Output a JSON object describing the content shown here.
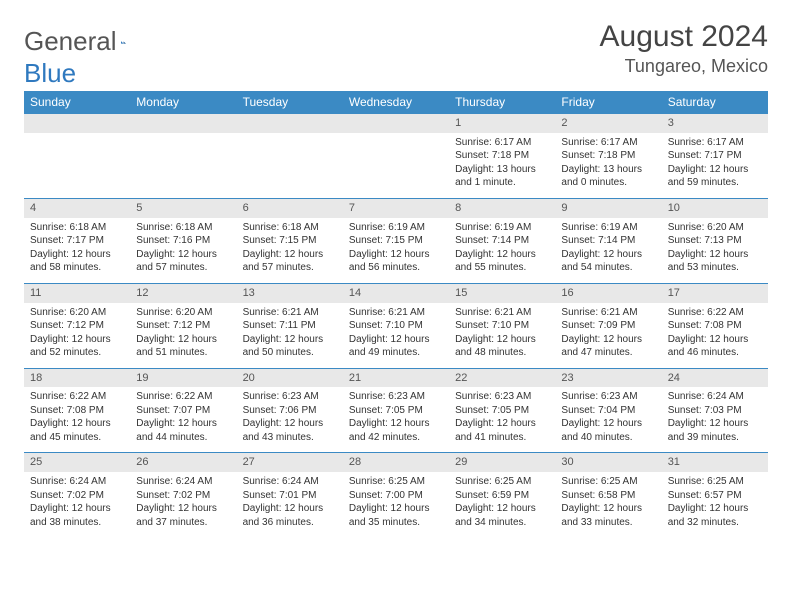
{
  "logo": {
    "part1": "General",
    "part2": "Blue"
  },
  "title": "August 2024",
  "location": "Tungareo, Mexico",
  "colors": {
    "header_bg": "#3b8ac4",
    "header_fg": "#ffffff",
    "daynum_bg": "#e8e8e8",
    "rule": "#3b8ac4",
    "text": "#333333",
    "logo_gray": "#555555",
    "logo_blue": "#2f79bf",
    "bg": "#ffffff"
  },
  "day_names": [
    "Sunday",
    "Monday",
    "Tuesday",
    "Wednesday",
    "Thursday",
    "Friday",
    "Saturday"
  ],
  "weeks": [
    [
      null,
      null,
      null,
      null,
      {
        "n": "1",
        "sunrise": "6:17 AM",
        "sunset": "7:18 PM",
        "daylight": "13 hours and 1 minute."
      },
      {
        "n": "2",
        "sunrise": "6:17 AM",
        "sunset": "7:18 PM",
        "daylight": "13 hours and 0 minutes."
      },
      {
        "n": "3",
        "sunrise": "6:17 AM",
        "sunset": "7:17 PM",
        "daylight": "12 hours and 59 minutes."
      }
    ],
    [
      {
        "n": "4",
        "sunrise": "6:18 AM",
        "sunset": "7:17 PM",
        "daylight": "12 hours and 58 minutes."
      },
      {
        "n": "5",
        "sunrise": "6:18 AM",
        "sunset": "7:16 PM",
        "daylight": "12 hours and 57 minutes."
      },
      {
        "n": "6",
        "sunrise": "6:18 AM",
        "sunset": "7:15 PM",
        "daylight": "12 hours and 57 minutes."
      },
      {
        "n": "7",
        "sunrise": "6:19 AM",
        "sunset": "7:15 PM",
        "daylight": "12 hours and 56 minutes."
      },
      {
        "n": "8",
        "sunrise": "6:19 AM",
        "sunset": "7:14 PM",
        "daylight": "12 hours and 55 minutes."
      },
      {
        "n": "9",
        "sunrise": "6:19 AM",
        "sunset": "7:14 PM",
        "daylight": "12 hours and 54 minutes."
      },
      {
        "n": "10",
        "sunrise": "6:20 AM",
        "sunset": "7:13 PM",
        "daylight": "12 hours and 53 minutes."
      }
    ],
    [
      {
        "n": "11",
        "sunrise": "6:20 AM",
        "sunset": "7:12 PM",
        "daylight": "12 hours and 52 minutes."
      },
      {
        "n": "12",
        "sunrise": "6:20 AM",
        "sunset": "7:12 PM",
        "daylight": "12 hours and 51 minutes."
      },
      {
        "n": "13",
        "sunrise": "6:21 AM",
        "sunset": "7:11 PM",
        "daylight": "12 hours and 50 minutes."
      },
      {
        "n": "14",
        "sunrise": "6:21 AM",
        "sunset": "7:10 PM",
        "daylight": "12 hours and 49 minutes."
      },
      {
        "n": "15",
        "sunrise": "6:21 AM",
        "sunset": "7:10 PM",
        "daylight": "12 hours and 48 minutes."
      },
      {
        "n": "16",
        "sunrise": "6:21 AM",
        "sunset": "7:09 PM",
        "daylight": "12 hours and 47 minutes."
      },
      {
        "n": "17",
        "sunrise": "6:22 AM",
        "sunset": "7:08 PM",
        "daylight": "12 hours and 46 minutes."
      }
    ],
    [
      {
        "n": "18",
        "sunrise": "6:22 AM",
        "sunset": "7:08 PM",
        "daylight": "12 hours and 45 minutes."
      },
      {
        "n": "19",
        "sunrise": "6:22 AM",
        "sunset": "7:07 PM",
        "daylight": "12 hours and 44 minutes."
      },
      {
        "n": "20",
        "sunrise": "6:23 AM",
        "sunset": "7:06 PM",
        "daylight": "12 hours and 43 minutes."
      },
      {
        "n": "21",
        "sunrise": "6:23 AM",
        "sunset": "7:05 PM",
        "daylight": "12 hours and 42 minutes."
      },
      {
        "n": "22",
        "sunrise": "6:23 AM",
        "sunset": "7:05 PM",
        "daylight": "12 hours and 41 minutes."
      },
      {
        "n": "23",
        "sunrise": "6:23 AM",
        "sunset": "7:04 PM",
        "daylight": "12 hours and 40 minutes."
      },
      {
        "n": "24",
        "sunrise": "6:24 AM",
        "sunset": "7:03 PM",
        "daylight": "12 hours and 39 minutes."
      }
    ],
    [
      {
        "n": "25",
        "sunrise": "6:24 AM",
        "sunset": "7:02 PM",
        "daylight": "12 hours and 38 minutes."
      },
      {
        "n": "26",
        "sunrise": "6:24 AM",
        "sunset": "7:02 PM",
        "daylight": "12 hours and 37 minutes."
      },
      {
        "n": "27",
        "sunrise": "6:24 AM",
        "sunset": "7:01 PM",
        "daylight": "12 hours and 36 minutes."
      },
      {
        "n": "28",
        "sunrise": "6:25 AM",
        "sunset": "7:00 PM",
        "daylight": "12 hours and 35 minutes."
      },
      {
        "n": "29",
        "sunrise": "6:25 AM",
        "sunset": "6:59 PM",
        "daylight": "12 hours and 34 minutes."
      },
      {
        "n": "30",
        "sunrise": "6:25 AM",
        "sunset": "6:58 PM",
        "daylight": "12 hours and 33 minutes."
      },
      {
        "n": "31",
        "sunrise": "6:25 AM",
        "sunset": "6:57 PM",
        "daylight": "12 hours and 32 minutes."
      }
    ]
  ],
  "labels": {
    "sunrise": "Sunrise: ",
    "sunset": "Sunset: ",
    "daylight": "Daylight: "
  }
}
